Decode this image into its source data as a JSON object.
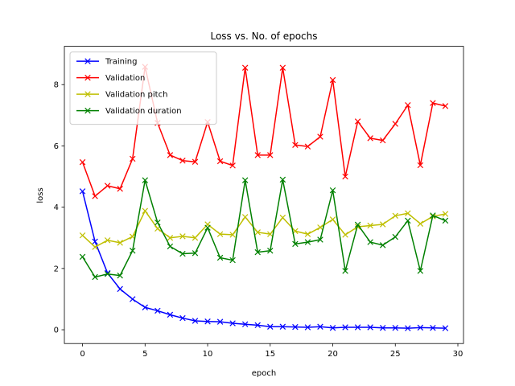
{
  "chart_data": {
    "type": "line",
    "title": "Loss vs. No. of epochs",
    "xlabel": "epoch",
    "ylabel": "loss",
    "xlim": [
      -1.45,
      30.45
    ],
    "ylim": [
      -0.45,
      9.25
    ],
    "xticks": [
      0,
      5,
      10,
      15,
      20,
      25,
      30
    ],
    "yticks": [
      0,
      2,
      4,
      6,
      8
    ],
    "legend_position": "top-left",
    "marker": "x",
    "x": [
      0,
      1,
      2,
      3,
      4,
      5,
      6,
      7,
      8,
      9,
      10,
      11,
      12,
      13,
      14,
      15,
      16,
      17,
      18,
      19,
      20,
      21,
      22,
      23,
      24,
      25,
      26,
      27,
      28,
      29
    ],
    "series": [
      {
        "name": "Training",
        "color": "#0000ff",
        "values": [
          4.52,
          2.88,
          1.85,
          1.33,
          1.0,
          0.73,
          0.62,
          0.49,
          0.38,
          0.29,
          0.27,
          0.26,
          0.21,
          0.18,
          0.15,
          0.1,
          0.1,
          0.09,
          0.08,
          0.1,
          0.06,
          0.08,
          0.08,
          0.08,
          0.06,
          0.06,
          0.05,
          0.07,
          0.06,
          0.05
        ]
      },
      {
        "name": "Validation",
        "color": "#ff0000",
        "values": [
          5.47,
          4.36,
          4.7,
          4.6,
          5.58,
          8.58,
          6.75,
          5.7,
          5.52,
          5.48,
          6.78,
          5.5,
          5.36,
          8.55,
          5.7,
          5.7,
          8.55,
          6.03,
          5.98,
          6.3,
          8.15,
          5.0,
          6.8,
          6.25,
          6.18,
          6.72,
          7.33,
          5.37,
          7.4,
          7.3
        ]
      },
      {
        "name": "Validation pitch",
        "color": "#bfbf00",
        "values": [
          3.08,
          2.7,
          2.92,
          2.84,
          3.04,
          3.88,
          3.3,
          3.0,
          3.05,
          3.0,
          3.44,
          3.12,
          3.1,
          3.68,
          3.18,
          3.12,
          3.66,
          3.22,
          3.12,
          3.34,
          3.6,
          3.1,
          3.36,
          3.4,
          3.44,
          3.72,
          3.8,
          3.46,
          3.7,
          3.78
        ]
      },
      {
        "name": "Validation duration",
        "color": "#008000",
        "values": [
          2.38,
          1.72,
          1.82,
          1.77,
          2.58,
          4.88,
          3.5,
          2.72,
          2.48,
          2.5,
          3.33,
          2.35,
          2.27,
          4.88,
          2.53,
          2.58,
          4.9,
          2.8,
          2.86,
          2.94,
          4.55,
          1.92,
          3.43,
          2.86,
          2.76,
          3.03,
          3.56,
          1.92,
          3.73,
          3.56
        ]
      }
    ]
  }
}
